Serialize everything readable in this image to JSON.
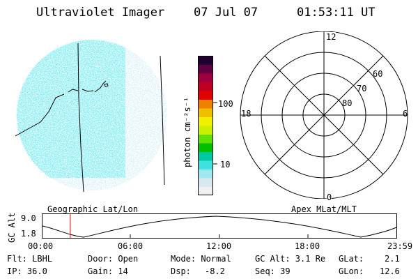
{
  "header": {
    "title": "Ultraviolet Imager",
    "date": "07 Jul 07",
    "time": "01:53:11 UT"
  },
  "colorbar": {
    "unit_label": "photon cm⁻²s⁻¹",
    "ticks": [
      "100",
      "10"
    ],
    "colors": [
      "#f0f0f0",
      "#d8e8f0",
      "#a0e8f0",
      "#40e0e0",
      "#00c8a0",
      "#00c000",
      "#60e000",
      "#c8f000",
      "#f0f000",
      "#f0c000",
      "#f08000",
      "#e00000",
      "#c00020",
      "#a00040",
      "#600040",
      "#200030"
    ]
  },
  "polar": {
    "labels": {
      "top": "12",
      "left": "18",
      "right": "6",
      "bottom": "0"
    },
    "rings": [
      "80",
      "70",
      "60"
    ]
  },
  "timeline": {
    "axis_label": "GC Alt",
    "y_max": "9.0",
    "y_min": "1.8",
    "left_label": "Geographic Lat/Lon",
    "right_label": "Apex MLat/MLT",
    "ticks": [
      "00:00",
      "06:00",
      "12:00",
      "18:00",
      "23:59"
    ],
    "current_time_fraction": 0.0786
  },
  "footer": {
    "row1": {
      "flt": "Flt: LBHL",
      "door": "Door: Open",
      "mode": "Mode: Normal",
      "gcalt": "GC Alt: 3.1 Re",
      "glat_label": "GLat:",
      "glat_value": "2.1"
    },
    "row2": {
      "ip": "IP: 36.0",
      "gain": "Gain: 14",
      "dsp_label": "Dsp:",
      "dsp_value": "-8.2",
      "seq": "Seq: 39",
      "glon_label": "GLon:",
      "glon_value": "12.6"
    }
  }
}
